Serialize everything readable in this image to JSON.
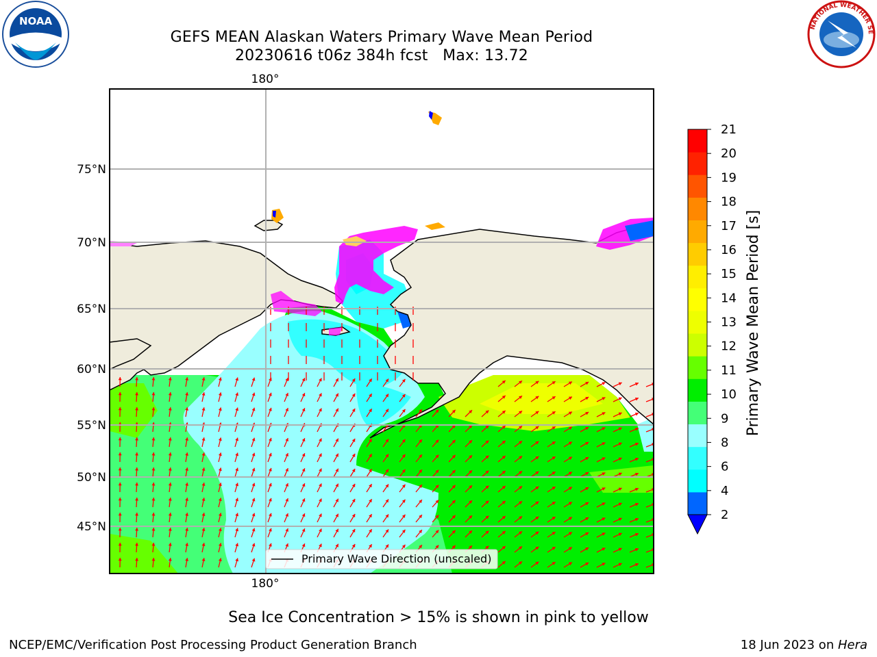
{
  "header": {
    "title_line1": "GEFS MEAN Alaskan Waters Primary Wave Mean Period",
    "title_line2": "20230616 t06z 384h fcst   Max: 13.72"
  },
  "logos": {
    "left": {
      "icon": "noaa-logo",
      "text": "NOAA"
    },
    "right": {
      "icon": "nws-logo",
      "text": "NATIONAL WEATHER SERVICE"
    }
  },
  "map": {
    "longitude_labels": [
      "180°",
      "180°"
    ],
    "latitude_labels": [
      "75°N",
      "70°N",
      "65°N",
      "60°N",
      "55°N",
      "50°N",
      "45°N"
    ],
    "legend_label": "Primary Wave Direction (unscaled)",
    "arrow_color": "#ff0000",
    "land_color": "#efecdc",
    "sea_ice_colors": [
      "#ff00ff",
      "#ff8080",
      "#ffd060"
    ]
  },
  "colorbar": {
    "label": "Primary Wave Mean Period [s]",
    "ticks": [
      "2",
      "4",
      "6",
      "8",
      "9",
      "10",
      "11",
      "12",
      "13",
      "14",
      "15",
      "16",
      "17",
      "18",
      "19",
      "20",
      "21"
    ],
    "colors": [
      "#0066ff",
      "#00ffff",
      "#33ffff",
      "#99ffff",
      "#44ff77",
      "#00ee00",
      "#66ff00",
      "#ccff00",
      "#eeff00",
      "#ffff00",
      "#ffee00",
      "#ffcc00",
      "#ffaa00",
      "#ff8800",
      "#ff5500",
      "#ff2200",
      "#ff0000"
    ],
    "under_color": "#0000ff"
  },
  "footer": {
    "note": "Sea Ice Concentration > 15% is shown in pink to yellow",
    "left": "NCEP/EMC/Verification Post Processing Product Generation Branch",
    "right_date": "18 Jun 2023 on ",
    "right_host": "Hera"
  }
}
